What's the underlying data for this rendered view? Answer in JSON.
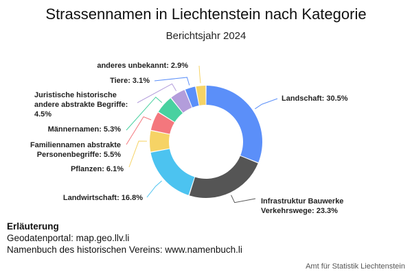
{
  "chart_data": {
    "type": "pie",
    "donut": true,
    "title": "Strassennamen in Liechtenstein nach Kategorie",
    "subtitle": "Berichtsjahr 2024",
    "slices": [
      {
        "label": "Landschaft: 30.5%",
        "value": 30.5,
        "color": "#5b8ff9"
      },
      {
        "label": "Infrastruktur Bauwerke\nVerkehrswege: 23.3%",
        "value": 23.3,
        "color": "#555555"
      },
      {
        "label": "Landwirtschaft: 16.8%",
        "value": 16.8,
        "color": "#4cc3f0"
      },
      {
        "label": "Pflanzen: 6.1%",
        "value": 6.1,
        "color": "#f6d365"
      },
      {
        "label": "Familiennamen abstrakte\nPersonenbegriffe: 5.5%",
        "value": 5.5,
        "color": "#f4777d"
      },
      {
        "label": "Männernamen: 5.3%",
        "value": 5.3,
        "color": "#48d1a0"
      },
      {
        "label": "Juristische historische\nandere abstrakte Begriffe:\n4.5%",
        "value": 4.5,
        "color": "#b39ddb"
      },
      {
        "label": "Tiere: 3.1%",
        "value": 3.1,
        "color": "#5b8ff9"
      },
      {
        "label": "anderes unbekannt: 2.9%",
        "value": 2.9,
        "color": "#f6d365"
      }
    ]
  },
  "notes": {
    "heading": "Erläuterung",
    "line1": "Geodatenportal: map.geo.llv.li",
    "line2": "Namenbuch des historischen Vereins: www.namenbuch.li"
  },
  "credit": "Amt für Statistik Liechtenstein"
}
